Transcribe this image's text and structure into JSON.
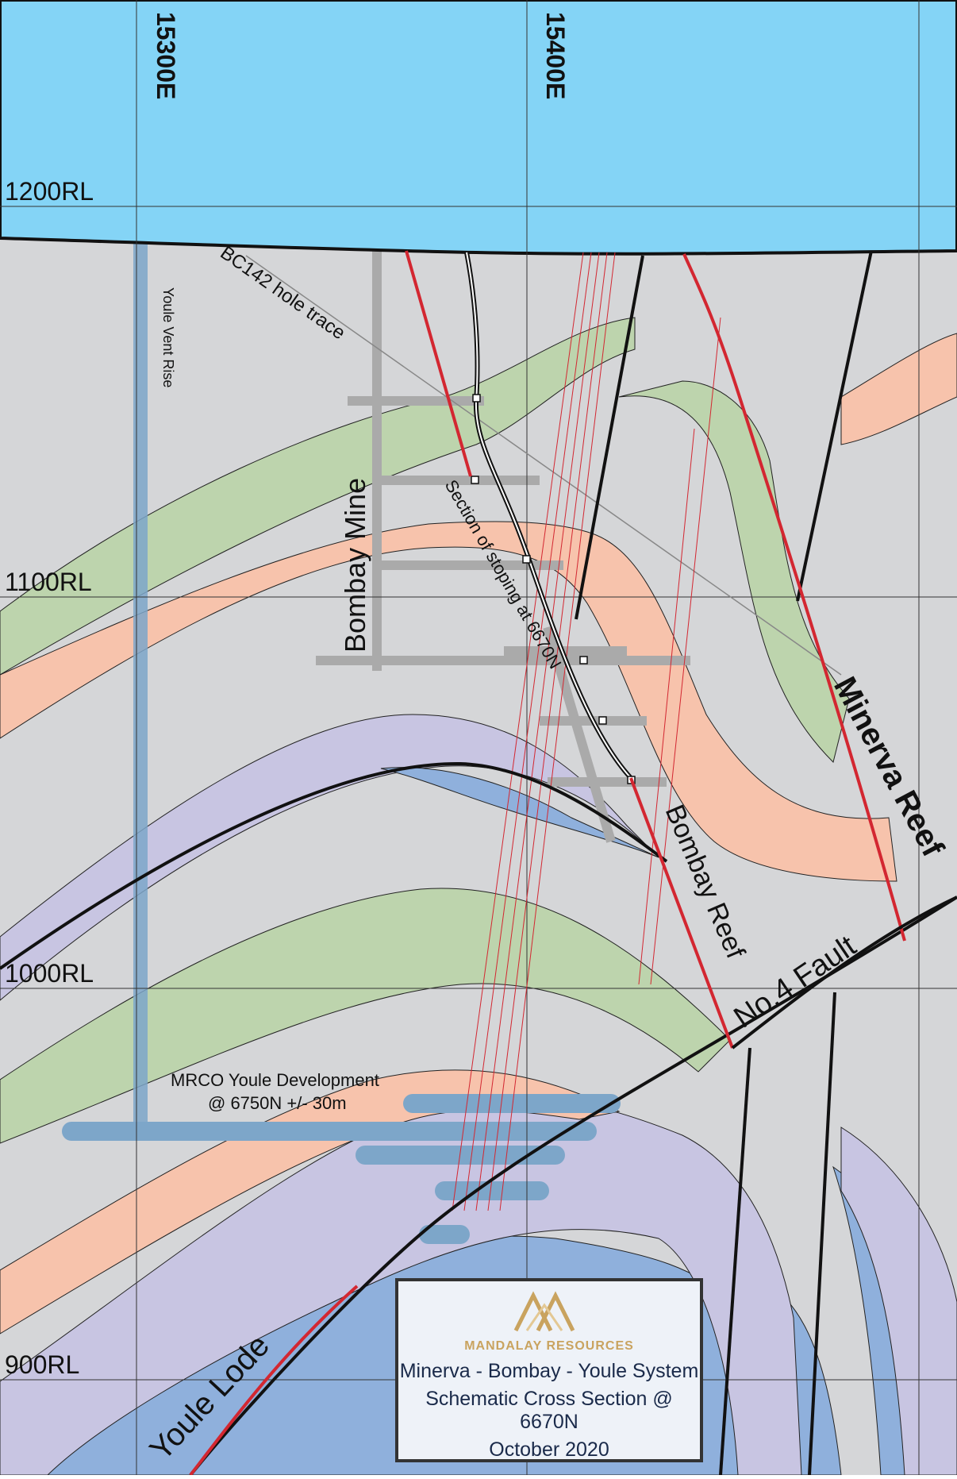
{
  "colors": {
    "sky": "#84d4f6",
    "background": "#d5d6d8",
    "green_band": "#bdd4ad",
    "salmon_band": "#f7c3ac",
    "purple_band": "#c8c5e2",
    "blue_zone": "#8fb0dc",
    "vent_rise": "#7da6c9",
    "fault_red": "#d32731",
    "mine_grey": "#aaaaaa"
  },
  "grid": {
    "easting_labels": [
      "15300E",
      "15400E"
    ],
    "rl_labels": [
      "1200RL",
      "1100RL",
      "1000RL",
      "900RL"
    ]
  },
  "annotations": {
    "vent_rise": "Youle Vent Rise",
    "hole_trace": "BC142 hole trace",
    "bombay_mine": "Bombay Mine",
    "stoping": "Section of stoping at 6670N",
    "minerva_reef": "Minerva Reef",
    "bombay_reef": "Bombay Reef",
    "fault": "No.4 Fault",
    "youle_lode": "Youle Lode",
    "development_line1": "MRCO Youle Development",
    "development_line2": "@ 6750N +/- 30m"
  },
  "title_box": {
    "company": "MANDALAY RESOURCES",
    "line1": "Minerva - Bombay - Youle System",
    "line2": "Schematic Cross Section @ 6670N",
    "line3": "October 2020"
  }
}
